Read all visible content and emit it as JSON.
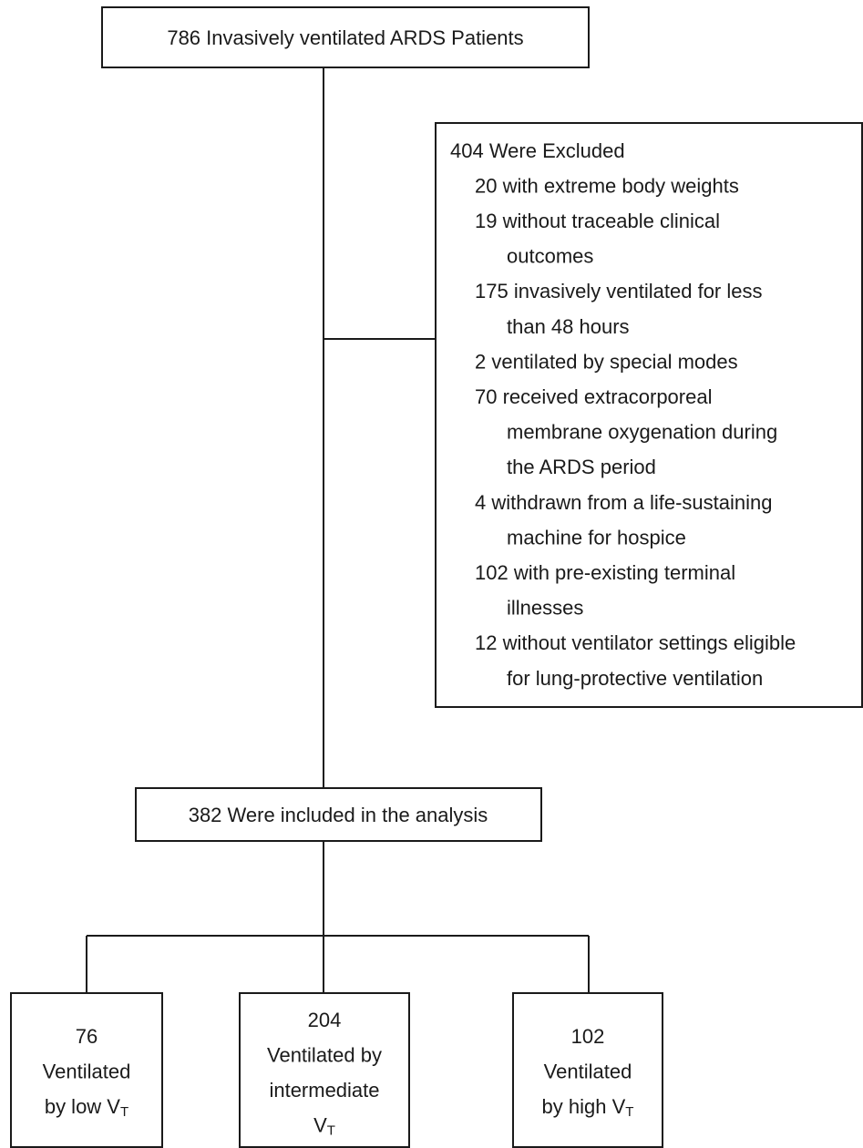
{
  "start": {
    "lines": [
      "786 Invasively ventilated ARDS Patients"
    ]
  },
  "excluded": {
    "title": "404 Were Excluded",
    "items": [
      [
        "20 with extreme body weights"
      ],
      [
        "19 without traceable clinical",
        "outcomes"
      ],
      [
        "175 invasively ventilated for less",
        "than 48 hours"
      ],
      [
        "2 ventilated by special modes"
      ],
      [
        "70 received extracorporeal",
        "membrane oxygenation during",
        "the ARDS period"
      ],
      [
        "4 withdrawn from a life-sustaining",
        "machine for hospice"
      ],
      [
        "102 with pre-existing terminal",
        "illnesses"
      ],
      [
        "12 without ventilator settings eligible",
        "for lung-protective ventilation"
      ]
    ]
  },
  "included": {
    "lines": [
      "382 Were included in the analysis"
    ]
  },
  "groups": [
    {
      "lines": [
        "76",
        "Ventilated",
        {
          "text": "by low V",
          "sub": "T"
        }
      ]
    },
    {
      "lines": [
        "204",
        "Ventilated by",
        "intermediate",
        {
          "text": "V",
          "sub": "T"
        }
      ]
    },
    {
      "lines": [
        "102",
        "Ventilated",
        {
          "text": "by high V",
          "sub": "T"
        }
      ]
    }
  ]
}
